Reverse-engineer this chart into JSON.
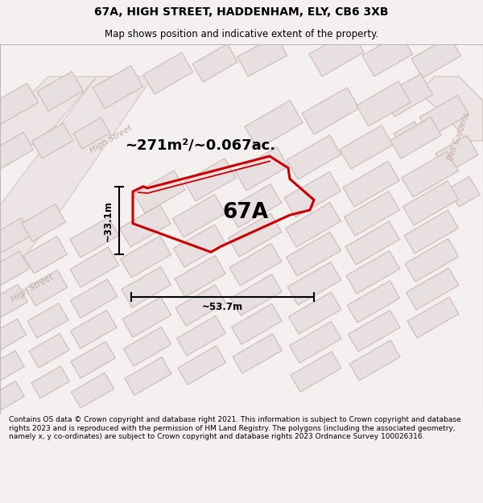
{
  "title": "67A, HIGH STREET, HADDENHAM, ELY, CB6 3XB",
  "subtitle": "Map shows position and indicative extent of the property.",
  "footer": "Contains OS data © Crown copyright and database right 2021. This information is subject to Crown copyright and database rights 2023 and is reproduced with the permission of HM Land Registry. The polygons (including the associated geometry, namely x, y co-ordinates) are subject to Crown copyright and database rights 2023 Ordnance Survey 100026316.",
  "area_label": "~271m²/~0.067ac.",
  "width_label": "~53.7m",
  "height_label": "~33.1m",
  "property_label": "67A",
  "map_bg": "#faf7f7",
  "bld_fill": "#e8e0e0",
  "bld_edge": "#d0b8b8",
  "road_fill": "#ede5e5",
  "road_edge": "#d0b8b8",
  "highlight_color": "#cc0000",
  "street_color": "#c0a8a8",
  "title_fontsize": 10,
  "subtitle_fontsize": 8.5,
  "footer_fontsize": 6.5
}
